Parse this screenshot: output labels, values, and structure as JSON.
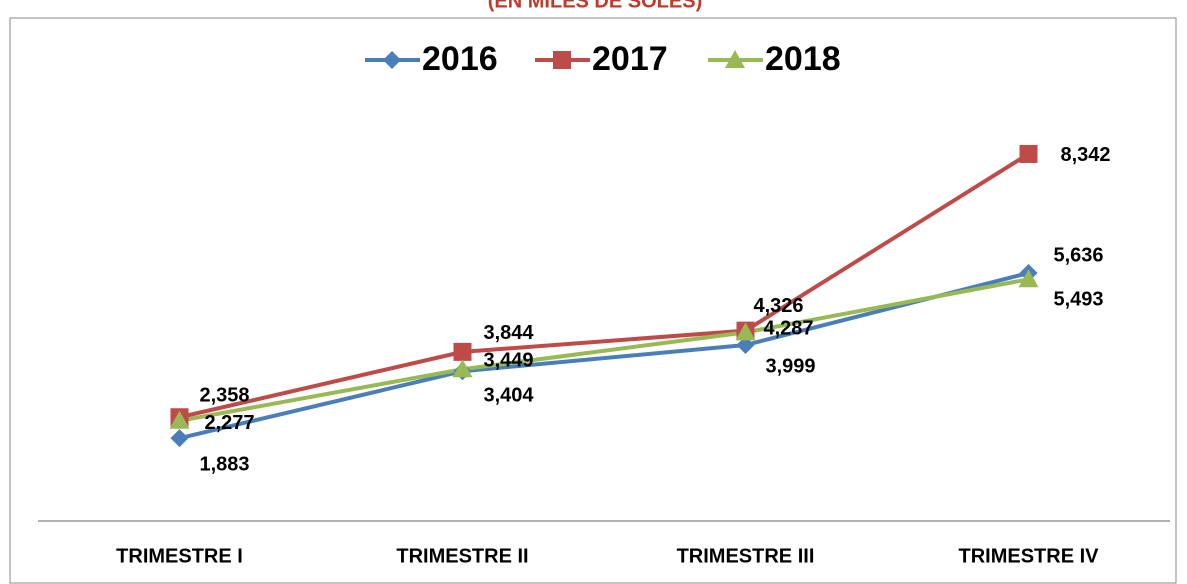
{
  "chart_data": {
    "type": "line",
    "subtitle": "(EN MILES DE SOLES)",
    "categories": [
      "TRIMESTRE I",
      "TRIMESTRE II",
      "TRIMESTRE III",
      "TRIMESTRE IV"
    ],
    "series": [
      {
        "name": "2016",
        "color": "#4a7ebb",
        "marker": "diamond",
        "values": [
          1883,
          3404,
          3999,
          5636
        ],
        "value_labels": [
          "1,883",
          "3,404",
          "3,999",
          "5,636"
        ]
      },
      {
        "name": "2017",
        "color": "#be4b48",
        "marker": "square",
        "values": [
          2358,
          3844,
          4326,
          8342
        ],
        "value_labels": [
          "2,358",
          "3,844",
          "4,326",
          "8,342"
        ]
      },
      {
        "name": "2018",
        "color": "#98b954",
        "marker": "triangle",
        "values": [
          2277,
          3449,
          4287,
          5493
        ],
        "value_labels": [
          "2,277",
          "3,449",
          "4,287",
          "5,493"
        ]
      }
    ],
    "ylim": [
      0,
      9000
    ],
    "grid": false,
    "legend": "top"
  }
}
